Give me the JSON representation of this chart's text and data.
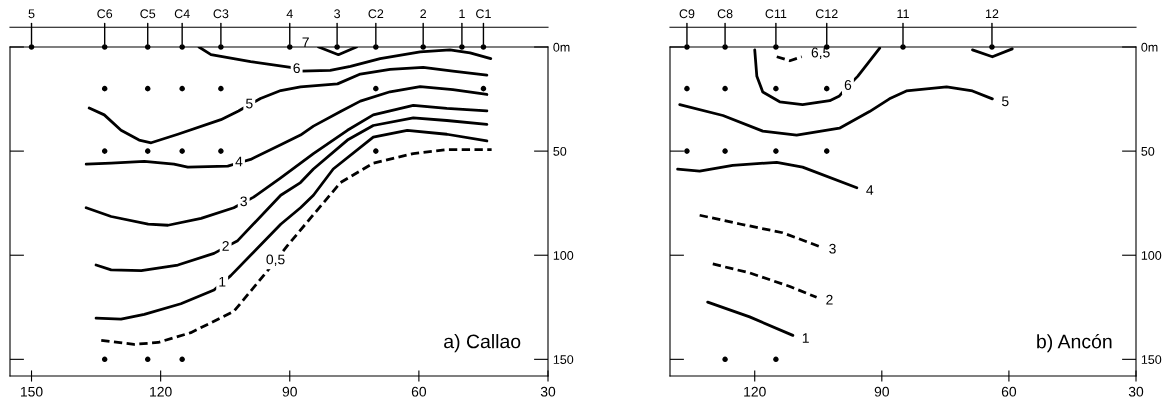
{
  "chart_data": [
    {
      "type": "line",
      "title": "a) Callao",
      "xlim": [
        155,
        30
      ],
      "xticks": [
        150,
        120,
        90,
        60,
        30
      ],
      "ylim": [
        158,
        0
      ],
      "yticks": [
        {
          "value": 0,
          "label": "0m"
        },
        50,
        100,
        150
      ],
      "grid": false,
      "series": [
        {
          "color": "#000000",
          "line_style": "solid",
          "x": [
            74.5,
            78.7,
            83.3
          ],
          "values": [
            0,
            3.7,
            0
          ]
        },
        {
          "color": "#000000",
          "line_style": "solid",
          "x": [
            111.1,
            108.3,
            99.1,
            89.8,
            88.4,
            87.5,
            80.6,
            75.9,
            69,
            59.7,
            52.8,
            48.1,
            43.3
          ],
          "values": [
            0,
            3.7,
            7,
            9.8,
            10.7,
            11.6,
            11.2,
            9.3,
            5.6,
            2.3,
            1.4,
            2.8,
            5.6
          ]
        },
        {
          "color": "#000000",
          "line_style": "solid",
          "x": [
            136.6,
            133.1,
            129.2,
            125,
            122.2,
            116,
            106,
            101.9,
            99.4,
            96.8,
            92.1,
            87.5,
            78.9,
            73.6,
            66.7,
            59,
            52.1,
            44.2
          ],
          "values": [
            29.3,
            32.6,
            40,
            44.7,
            46,
            41.9,
            34.9,
            30.7,
            27.7,
            24.7,
            20.9,
            19.1,
            17.7,
            13,
            10.7,
            9.8,
            11.6,
            13.5
          ]
        },
        {
          "color": "#000000",
          "line_style": "solid",
          "x": [
            137.3,
            131.5,
            123.8,
            116.9,
            113.7,
            104.4,
            101.8,
            99.1,
            92.1,
            87.5,
            84.5,
            78.2,
            73.6,
            66.7,
            59.7,
            52.1,
            44.2
          ],
          "values": [
            56.3,
            55.8,
            54.9,
            56.3,
            57.7,
            57.2,
            55.6,
            54,
            47,
            42.3,
            38,
            31,
            26,
            21.5,
            19,
            20.5,
            22.8
          ]
        },
        {
          "color": "#000000",
          "line_style": "solid",
          "x": [
            137.3,
            131.5,
            122.9,
            118.3,
            110.6,
            103,
            100.7,
            98.4,
            92.1,
            84.5,
            76.6,
            70.6,
            61.3,
            53.5,
            44.2
          ],
          "values": [
            77.2,
            81.4,
            85.1,
            85.6,
            82.3,
            77.2,
            74.7,
            72.1,
            62.8,
            51.2,
            40,
            32.6,
            28,
            29.5,
            30.7
          ]
        },
        {
          "color": "#000000",
          "line_style": "solid",
          "x": [
            135,
            131.5,
            124.5,
            116,
            107.6,
            104.9,
            102.1,
            92.1,
            87.5,
            84.5,
            76.6,
            70.6,
            61.3,
            53.5,
            44.2
          ],
          "values": [
            104.7,
            107,
            107.4,
            104.7,
            99.1,
            96.1,
            93,
            71.2,
            65.1,
            58.6,
            44.7,
            37.7,
            34,
            35.3,
            37.2
          ]
        },
        {
          "color": "#000000",
          "line_style": "solid",
          "x": [
            135,
            129.2,
            123.8,
            115.3,
            107.6,
            105.7,
            103.7,
            92.1,
            87.5,
            84.5,
            79.9,
            70.6,
            62.7,
            53.5,
            44.2
          ],
          "values": [
            130.2,
            130.7,
            128.4,
            123.3,
            116.7,
            113.3,
            109.8,
            85.1,
            77.2,
            71.2,
            58.6,
            43.3,
            40,
            41.9,
            45.1
          ]
        },
        {
          "color": "#000000",
          "line_style": "dashed",
          "x": [
            133.8,
            126.2,
            120.6,
            113,
            103,
            96.1,
            93.3,
            90.5,
            84.5,
            78.2,
            70.6,
            61.3,
            53.5,
            43.1
          ],
          "values": [
            140.9,
            142.8,
            141.9,
            137.2,
            127,
            109.8,
            102.6,
            95.3,
            80.5,
            65.1,
            55.8,
            51.2,
            49.3,
            49.3
          ]
        },
        {
          "type": "scatter",
          "color": "#000000",
          "marker": "circle",
          "x": [
            150,
            133,
            123,
            115,
            106,
            90,
            79,
            70,
            59,
            50,
            45,
            133,
            123,
            115,
            106,
            70,
            45,
            133,
            123,
            115,
            106,
            70,
            133,
            123,
            115
          ],
          "values": [
            0,
            0,
            0,
            0,
            0,
            0,
            0,
            0,
            0,
            0,
            0,
            20,
            20,
            20,
            20,
            20,
            20,
            50,
            50,
            50,
            50,
            50,
            150,
            150,
            150
          ]
        }
      ],
      "annotations": [
        {
          "text": "5",
          "x": 150,
          "y": 0
        },
        {
          "text": "C6",
          "x": 133,
          "y": 0
        },
        {
          "text": "C5",
          "x": 123,
          "y": 0
        },
        {
          "text": "C4",
          "x": 115,
          "y": 0
        },
        {
          "text": "C3",
          "x": 106,
          "y": 0
        },
        {
          "text": "4",
          "x": 90,
          "y": 0
        },
        {
          "text": "3",
          "x": 79,
          "y": 0
        },
        {
          "text": "C2",
          "x": 70,
          "y": 0
        },
        {
          "text": "2",
          "x": 59,
          "y": 0
        },
        {
          "text": "1",
          "x": 50,
          "y": 0
        },
        {
          "text": "C1",
          "x": 45,
          "y": 0
        },
        {
          "text": "7",
          "x": 83.3,
          "y": 0
        },
        {
          "text": "6",
          "x": 88.4,
          "y": 10.7
        },
        {
          "text": "5",
          "x": 99.4,
          "y": 27.7
        },
        {
          "text": "4",
          "x": 101.8,
          "y": 55.6
        },
        {
          "text": "3",
          "x": 100.7,
          "y": 74.7
        },
        {
          "text": "2",
          "x": 104.9,
          "y": 96.1
        },
        {
          "text": "1",
          "x": 105.7,
          "y": 113.3
        },
        {
          "text": "0,5",
          "x": 93.3,
          "y": 102.6
        }
      ]
    },
    {
      "type": "line",
      "title": "b) Ancón",
      "xlim": [
        140,
        30
      ],
      "xticks": [
        120,
        90,
        60,
        30
      ],
      "ylim": [
        158,
        0
      ],
      "yticks": [
        {
          "value": 0,
          "label": "0m"
        },
        50,
        100,
        150
      ],
      "grid": false,
      "series": [
        {
          "color": "#000000",
          "line_style": "dashed",
          "x": [
            114.8,
            111.7,
            108.9
          ],
          "values": [
            4.7,
            6.6,
            4.7
          ]
        },
        {
          "color": "#000000",
          "line_style": "solid",
          "x": [
            120,
            119.5,
            118.1,
            114.1,
            108.7,
            102.3,
            100,
            98,
            95.7,
            90.5
          ],
          "values": [
            1.4,
            14.1,
            21.6,
            26.3,
            27.7,
            25.8,
            23.5,
            18.8,
            14.1,
            0.5
          ]
        },
        {
          "color": "#000000",
          "line_style": "solid",
          "x": [
            68.6,
            63.9,
            59.2
          ],
          "values": [
            1.4,
            4.7,
            0.9
          ]
        },
        {
          "color": "#000000",
          "line_style": "solid",
          "x": [
            137.7,
            127.5,
            118.1,
            110.1,
            100,
            92.9,
            88.2,
            84.2,
            74.7,
            68.6,
            63.9
          ],
          "values": [
            27.7,
            32.9,
            40.4,
            42.3,
            39,
            31,
            24.9,
            21.1,
            19.2,
            21.1,
            24.9
          ]
        },
        {
          "color": "#000000",
          "line_style": "solid",
          "x": [
            138.2,
            133,
            125.2,
            114.8,
            108.7,
            95.9
          ],
          "values": [
            58.7,
            59.6,
            56.8,
            55.4,
            57.7,
            67.6
          ]
        },
        {
          "color": "#000000",
          "line_style": "dashed",
          "x": [
            133,
            123.5,
            113.4,
            104.7
          ],
          "values": [
            80.8,
            85,
            89.2,
            95.8
          ]
        },
        {
          "color": "#000000",
          "line_style": "dashed",
          "x": [
            129.9,
            121.2,
            111.7,
            105.4
          ],
          "values": [
            104.2,
            108.5,
            115,
            120.2
          ]
        },
        {
          "color": "#000000",
          "line_style": "solid",
          "x": [
            131.1,
            121.2,
            111
          ],
          "values": [
            122.5,
            129.6,
            138.5
          ]
        },
        {
          "type": "scatter",
          "color": "#000000",
          "marker": "circle",
          "x": [
            136,
            127,
            115,
            103,
            85,
            64,
            136,
            127,
            115,
            103,
            136,
            127,
            115,
            103,
            127,
            115
          ],
          "values": [
            0,
            0,
            0,
            0,
            0,
            0,
            20,
            20,
            20,
            20,
            50,
            50,
            50,
            50,
            150,
            150
          ]
        }
      ],
      "annotations": [
        {
          "text": "C9",
          "x": 136,
          "y": 0
        },
        {
          "text": "C8",
          "x": 127,
          "y": 0
        },
        {
          "text": "C11",
          "x": 115,
          "y": 0
        },
        {
          "text": "C12",
          "x": 103,
          "y": 0
        },
        {
          "text": "11",
          "x": 85,
          "y": 0
        },
        {
          "text": "12",
          "x": 64,
          "y": 0
        },
        {
          "text": "6,5",
          "x": 108.9,
          "y": 4.7
        },
        {
          "text": "6",
          "x": 98,
          "y": 18.8
        },
        {
          "text": "5",
          "x": 63.9,
          "y": 24.9
        },
        {
          "text": "4",
          "x": 95.9,
          "y": 67.6
        },
        {
          "text": "3",
          "x": 104.7,
          "y": 95.8
        },
        {
          "text": "2",
          "x": 105.4,
          "y": 120.2
        },
        {
          "text": "1",
          "x": 111,
          "y": 138.5
        }
      ]
    }
  ]
}
